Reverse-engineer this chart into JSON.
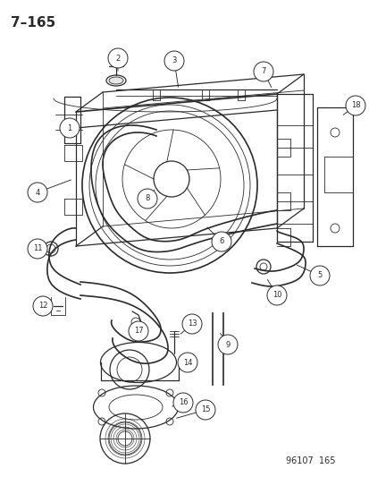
{
  "title": "7–165",
  "footer": "96107  165",
  "bg_color": "#ffffff",
  "line_color": "#2a2a2a",
  "title_fontsize": 11,
  "footer_fontsize": 7
}
